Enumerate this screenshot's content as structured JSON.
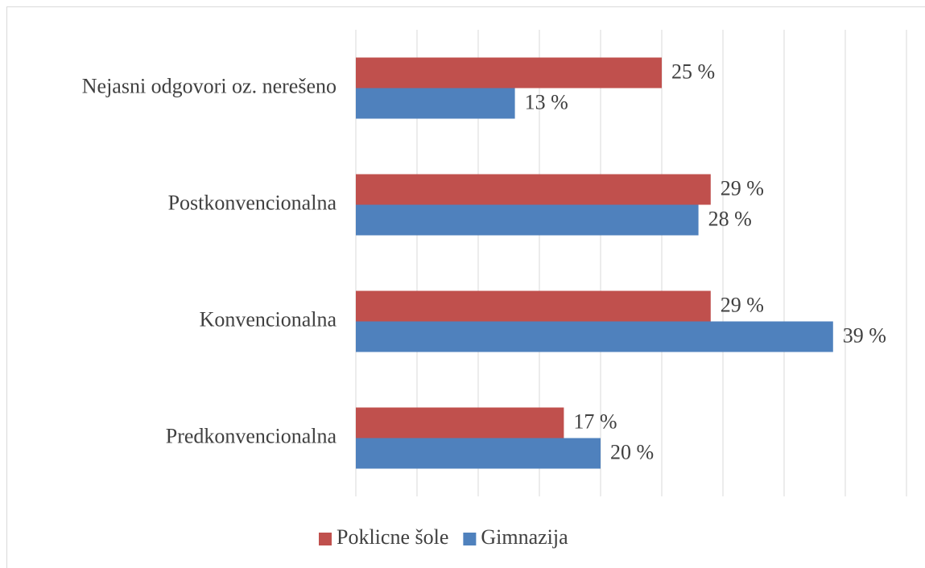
{
  "chart_data": {
    "type": "hbar",
    "categories": [
      "Nejasni odgovori oz. nerešeno",
      "Postkonvencionalna",
      "Konvencionalna",
      "Predkonvencionalna"
    ],
    "series": [
      {
        "name": "Poklicne šole",
        "color": "#c0504d",
        "values": [
          25,
          29,
          29,
          17
        ],
        "value_labels": [
          "25 %",
          "29 %",
          "29 %",
          "17 %"
        ]
      },
      {
        "name": "Gimnazija",
        "color": "#4f81bd",
        "values": [
          13,
          28,
          39,
          20
        ],
        "value_labels": [
          "13 %",
          "28 %",
          "39 %",
          "20 %"
        ]
      }
    ],
    "xlim": [
      0,
      45
    ],
    "xticks": [
      0,
      5,
      10,
      15,
      20,
      25,
      30,
      35,
      40,
      45
    ],
    "grid": true,
    "legend": "bottom"
  }
}
